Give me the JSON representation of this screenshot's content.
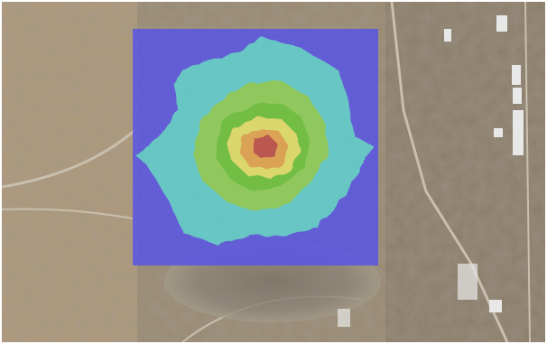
{
  "map": {
    "basemap": "satellite-imagery",
    "subject": "open-pit-mine",
    "overlay": {
      "type": "contour-heatmap",
      "colors": {
        "level_1": "#5a55e6",
        "level_2": "#5fd0d2",
        "level_3": "#8fd35a",
        "level_4": "#6cc63a",
        "level_5": "#e6e46a",
        "level_6": "#e6a650",
        "level_7": "#c0504a"
      }
    },
    "terrain_colors": {
      "base": "#9a8a72",
      "sand": "#b8a07e",
      "dark": "#6f6558",
      "road": "#c9bfae",
      "building": "#e8e8e8",
      "pit": "#8c8478"
    }
  }
}
